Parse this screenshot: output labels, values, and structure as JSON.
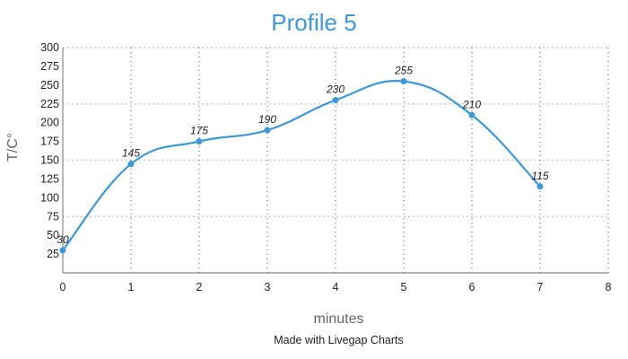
{
  "chart_data": {
    "type": "line",
    "title": "Profile 5",
    "xlabel": "minutes",
    "ylabel": "T/C°",
    "x": [
      0,
      1,
      2,
      3,
      4,
      5,
      6,
      7
    ],
    "series": [
      {
        "name": "Profile 5",
        "values": [
          30,
          145,
          175,
          190,
          230,
          255,
          210,
          115
        ],
        "color": "#3b98d9"
      }
    ],
    "xlim": [
      0,
      8
    ],
    "ylim": [
      0,
      300
    ],
    "x_ticks": [
      0,
      1,
      2,
      3,
      4,
      5,
      6,
      7,
      8
    ],
    "y_ticks": [
      25,
      50,
      75,
      100,
      125,
      150,
      175,
      200,
      225,
      250,
      275,
      300
    ],
    "h_grid": [
      75,
      150,
      225,
      300
    ],
    "v_grid": [
      1,
      2,
      3,
      4,
      5,
      6,
      7,
      8
    ],
    "smooth": true,
    "data_labels": true,
    "legend": "none"
  },
  "footer": {
    "credit": "Made with Livegap Charts"
  }
}
